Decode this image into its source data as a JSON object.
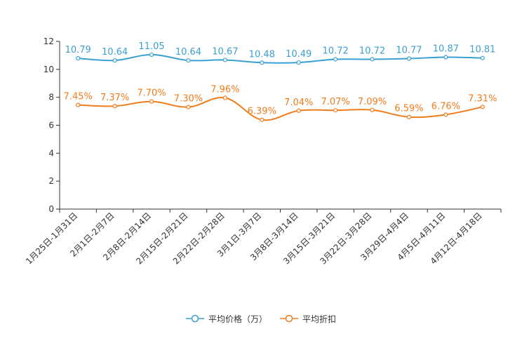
{
  "chart_data": {
    "type": "line",
    "title": "",
    "xlabel": "",
    "ylabel": "",
    "ylim": [
      0,
      12
    ],
    "yticks": [
      0,
      2,
      4,
      6,
      8,
      10,
      12
    ],
    "grid": false,
    "legend_position": "bottom-center",
    "categories": [
      "1月25日-1月31日",
      "2月1日-2月7日",
      "2月8日-2月14日",
      "2月15日-2月21日",
      "2月22日-2月28日",
      "3月1日-3月7日",
      "3月8日-3月14日",
      "3月15日-3月21日",
      "3月22日-3月28日",
      "3月29日-4月4日",
      "4月5日-4月11日",
      "4月12日-4月18日"
    ],
    "series": [
      {
        "name": "平均价格（万）",
        "color": "#3a9fd1",
        "values": [
          10.79,
          10.64,
          11.05,
          10.64,
          10.67,
          10.48,
          10.49,
          10.72,
          10.72,
          10.77,
          10.87,
          10.81
        ],
        "labels": [
          "10.79",
          "10.64",
          "11.05",
          "10.64",
          "10.67",
          "10.48",
          "10.49",
          "10.72",
          "10.72",
          "10.77",
          "10.87",
          "10.81"
        ]
      },
      {
        "name": "平均折扣",
        "color": "#f07c1c",
        "values": [
          7.45,
          7.37,
          7.7,
          7.3,
          7.96,
          6.39,
          7.04,
          7.07,
          7.09,
          6.59,
          6.76,
          7.31
        ],
        "labels": [
          "7.45%",
          "7.37%",
          "7.70%",
          "7.30%",
          "7.96%",
          "6.39%",
          "7.04%",
          "7.07%",
          "7.09%",
          "6.59%",
          "6.76%",
          "7.31%"
        ]
      }
    ]
  }
}
